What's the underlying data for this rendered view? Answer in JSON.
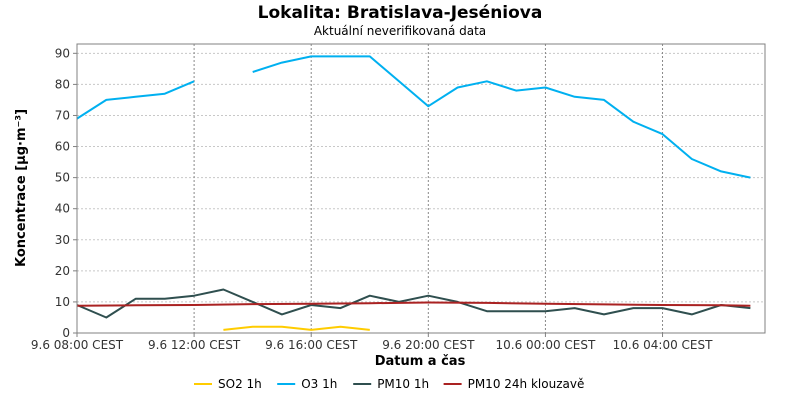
{
  "chart_data": {
    "type": "line",
    "title": "Lokalita: Bratislava-Jeséniova",
    "subtitle": "Aktuální neverifikovaná data",
    "xlabel": "Datum a čas",
    "ylabel": "Koncentrace [µg·m⁻³]",
    "ylim": [
      0,
      93
    ],
    "yticks": [
      0,
      10,
      20,
      30,
      40,
      50,
      60,
      70,
      80,
      90
    ],
    "xlim": [
      8,
      31.5
    ],
    "xticks": [
      {
        "x": 8,
        "label": "9.6 08:00 CEST"
      },
      {
        "x": 12,
        "label": "9.6 12:00 CEST"
      },
      {
        "x": 16,
        "label": "9.6 16:00 CEST"
      },
      {
        "x": 20,
        "label": "9.6 20:00 CEST"
      },
      {
        "x": 24,
        "label": "10.6 00:00 CEST"
      },
      {
        "x": 28,
        "label": "10.6 04:00 CEST"
      }
    ],
    "x_unit": "hours since 9.6 00:00 CEST",
    "grid": true,
    "legend_position": "bottom",
    "series": [
      {
        "name": "SO2 1h",
        "color": "#ffcc00",
        "x": [
          13,
          14,
          15,
          16,
          17,
          18
        ],
        "values": [
          1,
          2,
          2,
          1,
          2,
          1
        ]
      },
      {
        "name": "O3 1h",
        "color": "#00b0f0",
        "x": [
          8,
          9,
          10,
          11,
          12,
          null,
          14,
          15,
          16,
          17,
          18,
          19,
          20,
          21,
          22,
          23,
          24,
          25,
          26,
          27,
          28,
          29,
          30,
          31
        ],
        "values": [
          69,
          75,
          76,
          77,
          81,
          null,
          84,
          87,
          89,
          89,
          89,
          81,
          73,
          79,
          81,
          78,
          79,
          76,
          75,
          68,
          64,
          56,
          52,
          50
        ]
      },
      {
        "name": "PM10 1h",
        "color": "#2f4f4f",
        "x": [
          8,
          9,
          10,
          11,
          12,
          13,
          14,
          15,
          16,
          17,
          18,
          19,
          20,
          21,
          22,
          23,
          24,
          25,
          26,
          27,
          28,
          29,
          30,
          31
        ],
        "values": [
          9,
          5,
          11,
          11,
          12,
          14,
          10,
          6,
          9,
          8,
          12,
          10,
          12,
          10,
          7,
          7,
          7,
          8,
          6,
          8,
          8,
          6,
          9,
          8
        ]
      },
      {
        "name": "PM10 24h klouzavě",
        "color": "#aa2222",
        "x": [
          8,
          10,
          12,
          14,
          16,
          18,
          20,
          22,
          24,
          26,
          28,
          30,
          31
        ],
        "values": [
          8.8,
          8.9,
          9.0,
          9.3,
          9.4,
          9.6,
          9.8,
          9.7,
          9.4,
          9.2,
          9.0,
          8.9,
          8.8
        ]
      }
    ]
  }
}
